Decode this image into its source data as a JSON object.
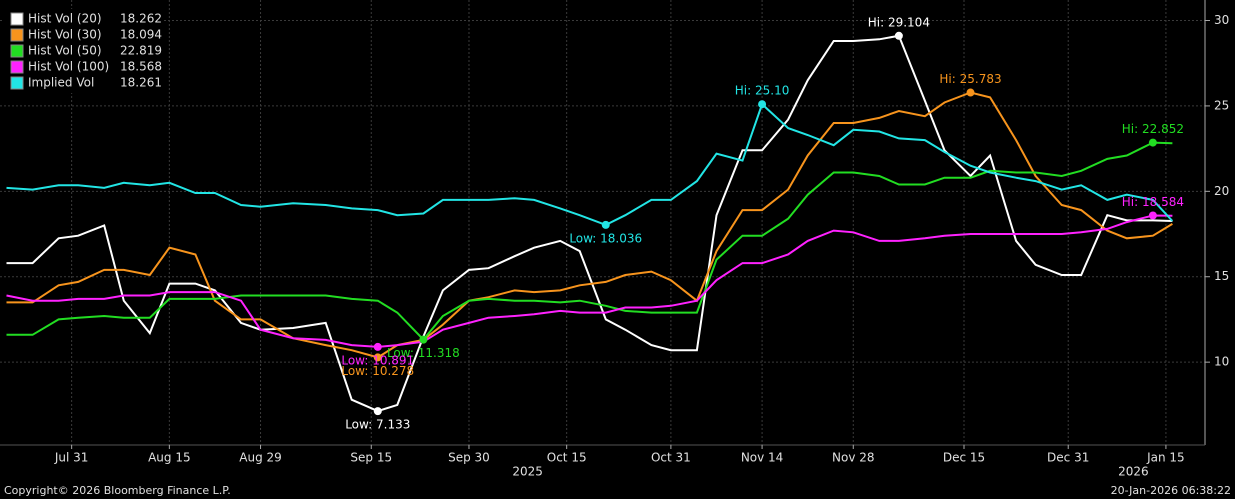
{
  "chart_data": {
    "type": "line",
    "x": [
      "2025-07-21",
      "2025-07-25",
      "2025-07-29",
      "2025-08-01",
      "2025-08-05",
      "2025-08-08",
      "2025-08-12",
      "2025-08-15",
      "2025-08-19",
      "2025-08-22",
      "2025-08-26",
      "2025-08-29",
      "2025-09-03",
      "2025-09-08",
      "2025-09-12",
      "2025-09-16",
      "2025-09-19",
      "2025-09-23",
      "2025-09-26",
      "2025-09-30",
      "2025-10-03",
      "2025-10-07",
      "2025-10-10",
      "2025-10-14",
      "2025-10-17",
      "2025-10-21",
      "2025-10-24",
      "2025-10-28",
      "2025-10-31",
      "2025-11-04",
      "2025-11-07",
      "2025-11-11",
      "2025-11-14",
      "2025-11-18",
      "2025-11-21",
      "2025-11-25",
      "2025-11-28",
      "2025-12-02",
      "2025-12-05",
      "2025-12-09",
      "2025-12-12",
      "2025-12-16",
      "2025-12-19",
      "2025-12-23",
      "2025-12-26",
      "2025-12-30",
      "2026-01-02",
      "2026-01-06",
      "2026-01-09",
      "2026-01-13",
      "2026-01-16"
    ],
    "series": [
      {
        "name": "Hist Vol (20)",
        "color": "#ffffff",
        "hi_label": "Hi: 29.104",
        "low_label": "Low: 7.133",
        "values": [
          15.8,
          15.8,
          17.25,
          17.4,
          18.0,
          13.6,
          11.7,
          14.6,
          14.6,
          14.2,
          12.3,
          11.9,
          12.0,
          12.3,
          7.8,
          7.133,
          7.5,
          11.5,
          14.2,
          15.4,
          15.5,
          16.2,
          16.7,
          17.1,
          16.5,
          12.5,
          11.9,
          11.0,
          10.7,
          10.7,
          18.6,
          22.4,
          22.4,
          24.2,
          26.5,
          28.8,
          28.8,
          28.9,
          29.104,
          25.3,
          22.4,
          20.9,
          22.1,
          17.1,
          15.7,
          15.1,
          15.1,
          18.6,
          18.3,
          18.3,
          18.262
        ]
      },
      {
        "name": "Hist Vol (30)",
        "color": "#f7941d",
        "hi_label": "Hi: 25.783",
        "low_label": "Low: 10.278",
        "values": [
          13.5,
          13.5,
          14.5,
          14.7,
          15.4,
          15.4,
          15.1,
          16.7,
          16.3,
          13.6,
          12.5,
          12.5,
          11.4,
          11.0,
          10.7,
          10.278,
          11.0,
          11.3,
          12.2,
          13.6,
          13.8,
          14.2,
          14.1,
          14.2,
          14.5,
          14.7,
          15.1,
          15.3,
          14.8,
          13.6,
          16.5,
          18.9,
          18.9,
          20.1,
          22.1,
          24.0,
          24.0,
          24.3,
          24.7,
          24.4,
          25.2,
          25.783,
          25.5,
          23.0,
          20.9,
          19.2,
          18.9,
          17.7,
          17.25,
          17.4,
          18.094
        ]
      },
      {
        "name": "Hist Vol (50)",
        "color": "#22dd22",
        "hi_label": "Hi: 22.852",
        "low_label": "Low: 11.318",
        "values": [
          11.6,
          11.6,
          12.5,
          12.6,
          12.7,
          12.6,
          12.6,
          13.7,
          13.7,
          13.7,
          13.9,
          13.9,
          13.9,
          13.9,
          13.7,
          13.6,
          12.9,
          11.318,
          12.7,
          13.6,
          13.7,
          13.6,
          13.6,
          13.5,
          13.6,
          13.3,
          13.0,
          12.9,
          12.9,
          12.9,
          16.0,
          17.4,
          17.4,
          18.4,
          19.8,
          21.1,
          21.1,
          20.9,
          20.4,
          20.4,
          20.8,
          20.8,
          21.2,
          21.1,
          21.1,
          20.9,
          21.2,
          21.9,
          22.1,
          22.852,
          22.819
        ]
      },
      {
        "name": "Hist Vol (100)",
        "color": "#ff22ff",
        "hi_label": "Hi: 18.584",
        "low_label": "Low: 10.891",
        "values": [
          13.9,
          13.6,
          13.6,
          13.7,
          13.7,
          13.9,
          13.9,
          14.1,
          14.1,
          14.1,
          13.6,
          11.9,
          11.4,
          11.3,
          11.0,
          10.891,
          11.0,
          11.2,
          11.9,
          12.3,
          12.6,
          12.7,
          12.8,
          13.0,
          12.9,
          12.9,
          13.2,
          13.2,
          13.3,
          13.6,
          14.8,
          15.8,
          15.8,
          16.3,
          17.1,
          17.7,
          17.6,
          17.1,
          17.1,
          17.25,
          17.4,
          17.5,
          17.5,
          17.5,
          17.5,
          17.5,
          17.6,
          17.8,
          18.2,
          18.584,
          18.568
        ]
      },
      {
        "name": "Implied Vol",
        "color": "#22e5e5",
        "hi_label": "Hi: 25.10",
        "low_label": "Low: 18.036",
        "values": [
          20.2,
          20.1,
          20.35,
          20.35,
          20.2,
          20.5,
          20.35,
          20.5,
          19.9,
          19.9,
          19.2,
          19.1,
          19.3,
          19.2,
          19.0,
          18.9,
          18.6,
          18.7,
          19.5,
          19.5,
          19.5,
          19.6,
          19.5,
          19.0,
          18.6,
          18.036,
          18.6,
          19.5,
          19.5,
          20.6,
          22.2,
          21.8,
          25.1,
          23.7,
          23.3,
          22.7,
          23.6,
          23.5,
          23.1,
          23.0,
          22.3,
          21.5,
          21.1,
          20.8,
          20.6,
          20.1,
          20.35,
          19.5,
          19.8,
          19.5,
          18.261
        ]
      }
    ],
    "xlim": [
      "2025-07-20",
      "2026-01-21"
    ],
    "xticks": [
      {
        "value": "2025-07-31",
        "label": "Jul 31"
      },
      {
        "value": "2025-08-15",
        "label": "Aug 15"
      },
      {
        "value": "2025-08-29",
        "label": "Aug 29"
      },
      {
        "value": "2025-09-15",
        "label": "Sep 15"
      },
      {
        "value": "2025-09-30",
        "label": "Sep 30"
      },
      {
        "value": "2025-10-15",
        "label": "Oct 15"
      },
      {
        "value": "2025-10-31",
        "label": "Oct 31"
      },
      {
        "value": "2025-11-14",
        "label": "Nov 14"
      },
      {
        "value": "2025-11-28",
        "label": "Nov 28"
      },
      {
        "value": "2025-12-15",
        "label": "Dec 15"
      },
      {
        "value": "2025-12-31",
        "label": "Dec 31"
      },
      {
        "value": "2026-01-15",
        "label": "Jan 15"
      }
    ],
    "year_labels": [
      {
        "value": "2025-10-09",
        "label": "2025"
      },
      {
        "value": "2026-01-10",
        "label": "2026"
      }
    ],
    "ylim": [
      5.15,
      31.2
    ],
    "yticks": [
      10,
      15,
      20,
      25,
      30
    ],
    "grid": true,
    "legend": "top-left",
    "footer_left": "Copyright© 2026 Bloomberg Finance L.P.",
    "footer_right": "20-Jan-2026 06:38:22"
  }
}
